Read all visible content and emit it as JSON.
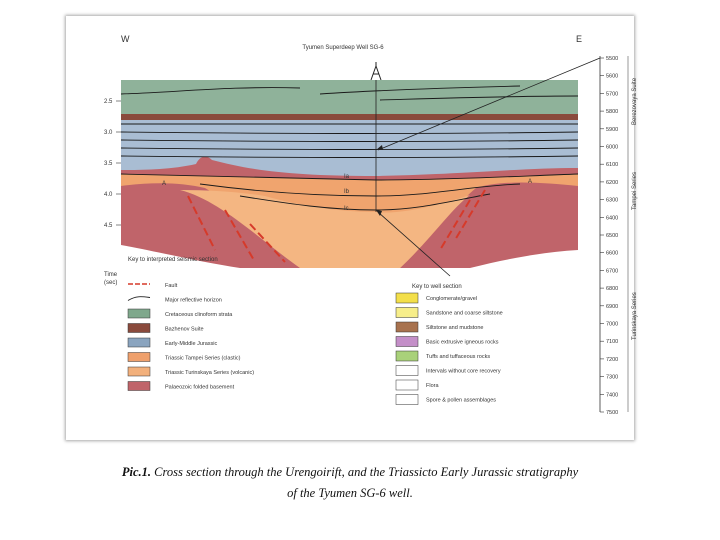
{
  "section": {
    "west_label": "W",
    "east_label": "E",
    "title": "Tyumen Superdeep Well SG-6",
    "time_axis": {
      "label_line1": "Time",
      "label_line2": "(sec)",
      "ticks": [
        "2.5",
        "3.0",
        "3.5",
        "4.0",
        "4.5"
      ]
    },
    "horizon_labels": [
      "A",
      "A",
      "Ia",
      "Ib",
      "Ic"
    ],
    "key_seismic": "Key to interpreted seismic section",
    "key_well": "Key to well section"
  },
  "legend_seismic": [
    {
      "label": "Fault",
      "color": "#d63a2a"
    },
    {
      "label": "Major reflective horizon",
      "color": "#222222"
    },
    {
      "label": "Cretaceous clinoform strata",
      "color": "#7fa88c"
    },
    {
      "label": "Bazhenov Suite",
      "color": "#8a4a3c"
    },
    {
      "label": "Early-Middle Jurassic",
      "color": "#8aa4bf"
    },
    {
      "label": "Triassic Tampei Series (clastic)",
      "color": "#efa06c"
    },
    {
      "label": "Triassic Turinskaya Series (volcanic)",
      "color": "#f2b07c"
    },
    {
      "label": "Palaeozoic folded basement",
      "color": "#c0646a"
    }
  ],
  "legend_well": [
    {
      "label": "Conglomerate/gravel",
      "color": "#f3df4a"
    },
    {
      "label": "Sandstone and coarse siltstone",
      "color": "#f7ee8a"
    },
    {
      "label": "Siltstone and mudstone",
      "color": "#a8724e"
    },
    {
      "label": "Basic extrusive igneous rocks",
      "color": "#c48fc8"
    },
    {
      "label": "Tuffs and tuffaceous rocks",
      "color": "#a9d17a"
    },
    {
      "label": "Intervals without core recovery",
      "color": "#ffffff"
    },
    {
      "label": "Flora",
      "color": "#ffffff"
    },
    {
      "label": "Spore & pollen assemblages",
      "color": "#ffffff"
    }
  ],
  "depth_scale": [
    "5500",
    "5600",
    "5700",
    "5800",
    "5900",
    "6000",
    "6100",
    "6200",
    "6300",
    "6400",
    "6500",
    "6600",
    "6700",
    "6800",
    "6900",
    "7000",
    "7100",
    "7200",
    "7300",
    "7400",
    "7500"
  ],
  "series_labels": [
    "Berezovaya Suite",
    "Tampei Series",
    "Turinskaya Series"
  ],
  "caption": {
    "prefix": "Pic.1.",
    "line1": " Cross section through the Urengoirift, and the Triassicto Early Jurassic stratigraphy",
    "line2": "of the Tyumen SG-6 well."
  }
}
